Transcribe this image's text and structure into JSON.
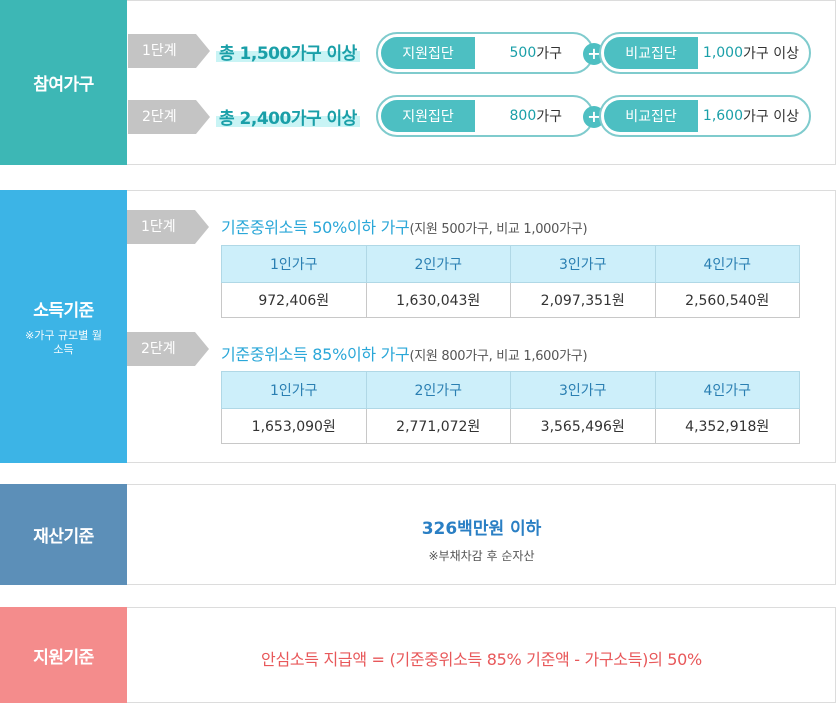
{
  "participation": {
    "title": "참여가구",
    "color": "#3db7b5",
    "rows": [
      {
        "stage": "1단계",
        "total": "총 1,500가구 이상",
        "support_label": "지원집단",
        "support_num": "500",
        "support_unit": "가구",
        "compare_label": "비교집단",
        "compare_num": "1,000",
        "compare_unit": "가구 이상"
      },
      {
        "stage": "2단계",
        "total": "총 2,400가구 이상",
        "support_label": "지원집단",
        "support_num": "800",
        "support_unit": "가구",
        "compare_label": "비교집단",
        "compare_num": "1,600",
        "compare_unit": "가구 이상"
      }
    ],
    "plus": "+"
  },
  "income": {
    "title": "소득기준",
    "subtitle": "※가구 규모별 월소득",
    "color": "#3cb4e6",
    "stages": [
      {
        "stage": "1단계",
        "title": "기준중위소득  50%이하 가구",
        "sub": "(지원 500가구, 비교 1,000가구)",
        "headers": [
          "1인가구",
          "2인가구",
          "3인가구",
          "4인가구"
        ],
        "values": [
          "972,406원",
          "1,630,043원",
          "2,097,351원",
          "2,560,540원"
        ]
      },
      {
        "stage": "2단계",
        "title": "기준중위소득 85%이하 가구",
        "sub": "(지원 800가구, 비교 1,600가구)",
        "headers": [
          "1인가구",
          "2인가구",
          "3인가구",
          "4인가구"
        ],
        "values": [
          "1,653,090원",
          "2,771,072원",
          "3,565,496원",
          "4,352,918원"
        ]
      }
    ]
  },
  "property": {
    "title": "재산기준",
    "color": "#5c8fb8",
    "value": "326백만원 이하",
    "note": "※부채차감 후 순자산"
  },
  "support": {
    "title": "지원기준",
    "color": "#f48c8c",
    "formula": "안심소득 지급액 = (기준중위소득 85% 기준액 - 가구소득)의 50%"
  }
}
